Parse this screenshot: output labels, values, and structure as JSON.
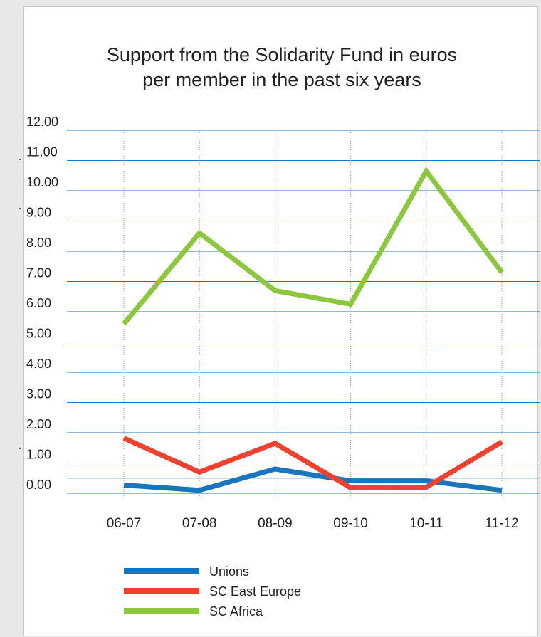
{
  "chart_data": {
    "type": "line",
    "title": "Support from the Solidarity Fund in euros per member in the past six years",
    "title_lines": [
      "Support from the Solidarity Fund in euros",
      "per member in the past six years"
    ],
    "categories": [
      "06-07",
      "07-08",
      "08-09",
      "09-10",
      "10-11",
      "11-12"
    ],
    "y_ticks": [
      "0.00",
      "1.00",
      "2.00",
      "3.00",
      "4.00",
      "5.00",
      "6.00",
      "7.00",
      "8.00",
      "9.00",
      "10.00",
      "11.00",
      "12.00"
    ],
    "ylim": [
      0,
      12
    ],
    "grid": {
      "horizontal_major": true,
      "horizontal_minor_at": [
        0.5
      ],
      "vertical_dotted": true
    },
    "legend_position": "bottom-left",
    "series": [
      {
        "name": "Unions",
        "color": "#1b75bc",
        "values": [
          0.27,
          0.1,
          0.8,
          0.41,
          0.41,
          0.1
        ]
      },
      {
        "name": "SC East Europe",
        "color": "#ef4130",
        "values": [
          1.82,
          0.7,
          1.65,
          0.18,
          0.2,
          1.7
        ]
      },
      {
        "name": "SC Africa",
        "color": "#8dc63f",
        "values": [
          5.6,
          8.6,
          6.7,
          6.25,
          10.65,
          7.3
        ]
      }
    ],
    "colors": {
      "gridline": "#1b75bc",
      "vertical_grid": "#9a9a9a",
      "text": "#231f20"
    }
  }
}
